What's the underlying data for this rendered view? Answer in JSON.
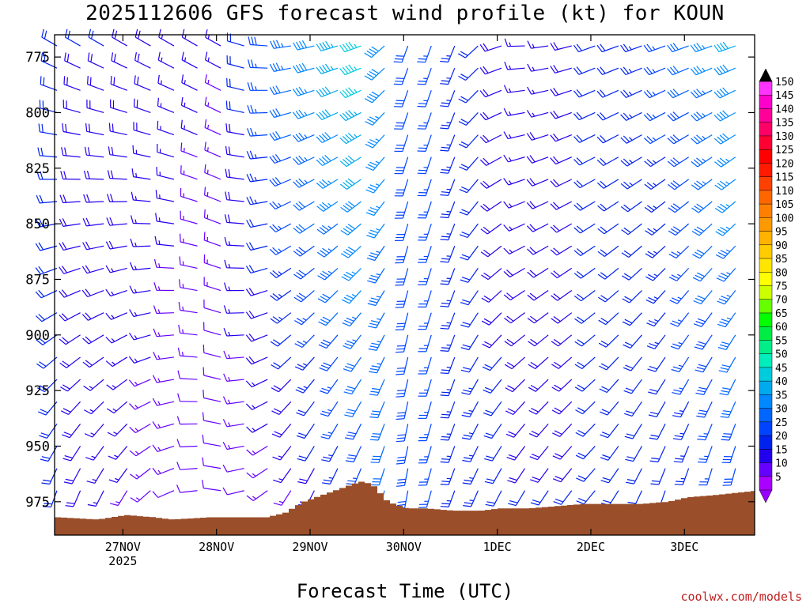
{
  "chart_data": {
    "type": "wind-barb-profile",
    "title": "2025112606 GFS forecast wind profile (kt) for KOUN",
    "xlabel": "Forecast Time (UTC)",
    "credit": "coolwx.com/models",
    "y_ticks": [
      "775",
      "800",
      "825",
      "850",
      "875",
      "900",
      "925",
      "950",
      "975"
    ],
    "y_range_hPa": [
      765,
      990
    ],
    "x_range_days": [
      -0.73,
      6.75
    ],
    "x_ticks": [
      {
        "label": "27NOV",
        "sub": "2025",
        "day": 0
      },
      {
        "label": "28NOV",
        "sub": "",
        "day": 1
      },
      {
        "label": "29NOV",
        "sub": "",
        "day": 2
      },
      {
        "label": "30NOV",
        "sub": "",
        "day": 3
      },
      {
        "label": "1DEC",
        "sub": "",
        "day": 4
      },
      {
        "label": "2DEC",
        "sub": "",
        "day": 5
      },
      {
        "label": "3DEC",
        "sub": "",
        "day": 6
      }
    ],
    "colorbar": {
      "labels": [
        "150",
        "145",
        "140",
        "135",
        "130",
        "125",
        "120",
        "115",
        "110",
        "105",
        "100",
        "95",
        "90",
        "85",
        "80",
        "75",
        "70",
        "65",
        "60",
        "55",
        "50",
        "45",
        "40",
        "35",
        "30",
        "25",
        "20",
        "15",
        "10",
        "5"
      ],
      "colors": [
        "#ff33ff",
        "#ff00cc",
        "#ff0099",
        "#ff0066",
        "#ff0033",
        "#ff0000",
        "#ff1a00",
        "#ff4000",
        "#ff6600",
        "#ff8000",
        "#ff9900",
        "#ffb300",
        "#ffcc00",
        "#ffe600",
        "#ffff00",
        "#ccff00",
        "#66ff00",
        "#00ff00",
        "#00ee44",
        "#00ee88",
        "#00eebb",
        "#00ccdd",
        "#00aaee",
        "#0088ff",
        "#0066ff",
        "#0044ff",
        "#0022ee",
        "#2200ee",
        "#6600ff",
        "#aa00ff"
      ],
      "cap_top": "#000000",
      "cap_bottom": "#9900ff"
    },
    "terrain_color": "#9a4f2a",
    "terrain_days": [
      -0.73,
      -0.3,
      0,
      0.3,
      0.5,
      0.9,
      1.2,
      1.5,
      1.7,
      1.9,
      2.1,
      2.3,
      2.5,
      2.55,
      2.65,
      2.8,
      3.0,
      3.2,
      3.5,
      3.8,
      4.0,
      4.3,
      4.6,
      4.9,
      5.2,
      5.5,
      5.8,
      6.0,
      6.3,
      6.75
    ],
    "terrain_pressure": [
      982,
      983,
      981,
      982,
      983,
      982,
      982,
      982,
      980,
      975,
      972,
      969,
      966,
      966,
      968,
      975,
      978,
      978,
      979,
      979,
      978,
      978,
      977,
      976,
      976,
      976,
      975,
      973,
      972,
      970
    ],
    "wind_profile": {
      "time_step_h": 6,
      "start_day": -0.73,
      "levels_hPa": [
        770,
        780,
        790,
        800,
        810,
        820,
        830,
        840,
        850,
        860,
        870,
        880,
        890,
        900,
        910,
        920,
        930,
        940,
        950,
        960,
        970
      ],
      "keyframes_day": [
        -0.73,
        0,
        1,
        1.8,
        2.5,
        2.6,
        3.0,
        3.5,
        4.2,
        5.0,
        5.7,
        6.75
      ],
      "speed_kt_low": [
        20,
        15,
        10,
        15,
        25,
        30,
        30,
        25,
        20,
        20,
        20,
        30
      ],
      "speed_kt_high": [
        20,
        20,
        15,
        35,
        48,
        45,
        30,
        25,
        15,
        20,
        25,
        45
      ],
      "dir_deg_low": [
        200,
        210,
        280,
        210,
        200,
        200,
        190,
        200,
        210,
        220,
        200,
        190
      ],
      "dir_deg_high": [
        300,
        300,
        300,
        260,
        250,
        250,
        200,
        200,
        270,
        250,
        250,
        250
      ]
    }
  }
}
